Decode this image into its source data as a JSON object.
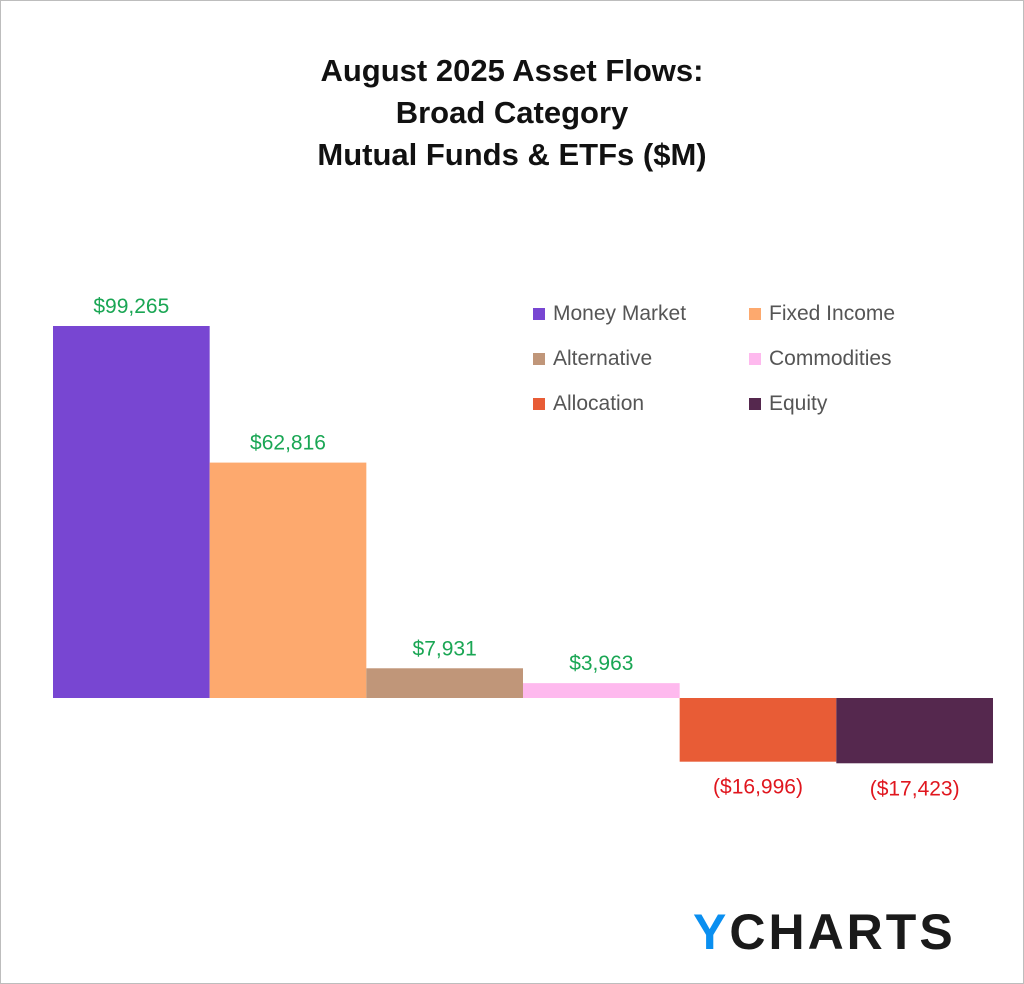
{
  "title_lines": [
    "August 2025 Asset Flows:",
    "Broad Category",
    "Mutual Funds & ETFs ($M)"
  ],
  "logo": {
    "y": "Y",
    "rest": "CHARTS"
  },
  "colors": {
    "positive_label": "#1aa654",
    "negative_label": "#e0161e",
    "text": "#111111"
  },
  "chart_data": {
    "type": "bar",
    "title": "August 2025 Asset Flows: Broad Category Mutual Funds & ETFs ($M)",
    "categories": [
      "Money Market",
      "Fixed Income",
      "Alternative",
      "Commodities",
      "Allocation",
      "Equity"
    ],
    "values": [
      99265,
      62816,
      7931,
      3963,
      -16996,
      -17423
    ],
    "data_labels": [
      "$99,265",
      "$62,816",
      "$7,931",
      "$3,963",
      "($16,996)",
      "($17,423)"
    ],
    "colors": [
      "#7846d2",
      "#fda96e",
      "#c09679",
      "#feb9ee",
      "#e85c36",
      "#55284e"
    ],
    "xlabel": "",
    "ylabel": "",
    "ylim": [
      -17423,
      99265
    ],
    "grid": false,
    "legend": "top-right"
  },
  "legend": [
    {
      "label": "Money Market",
      "color": "#7846d2"
    },
    {
      "label": "Fixed Income",
      "color": "#fda96e"
    },
    {
      "label": "Alternative",
      "color": "#c09679"
    },
    {
      "label": "Commodities",
      "color": "#feb9ee"
    },
    {
      "label": "Allocation",
      "color": "#e85c36"
    },
    {
      "label": "Equity",
      "color": "#55284e"
    }
  ]
}
